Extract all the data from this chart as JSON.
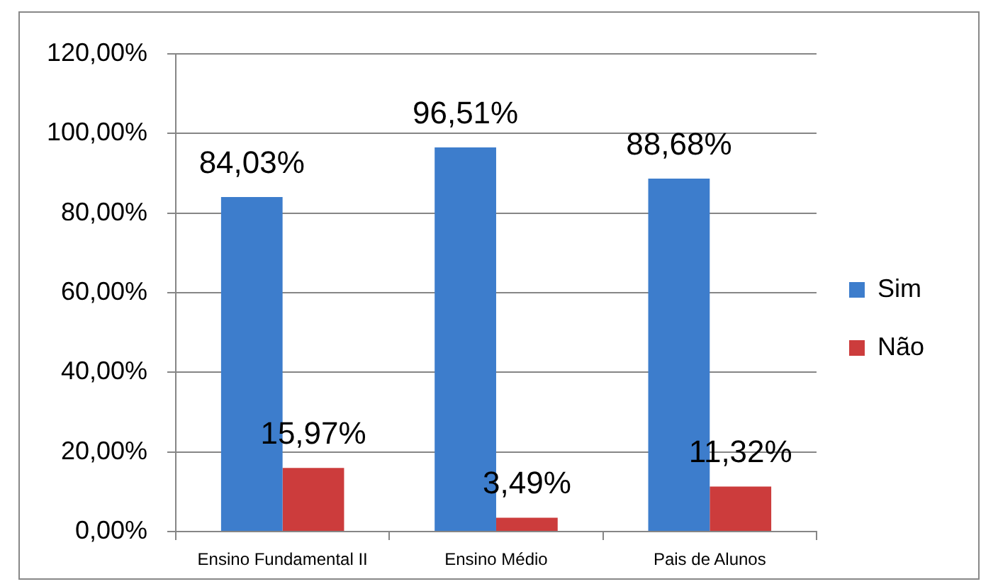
{
  "chart_data": {
    "type": "bar",
    "categories": [
      "Ensino Fundamental II",
      "Ensino Médio",
      "Pais de Alunos"
    ],
    "series": [
      {
        "name": "Sim",
        "color": "#3d7dcc",
        "values": [
          84.03,
          96.51,
          88.68
        ],
        "value_labels": [
          "84,03%",
          "96,51%",
          "88,68%"
        ]
      },
      {
        "name": "Não",
        "color": "#cc3c3c",
        "values": [
          15.97,
          3.49,
          11.32
        ],
        "value_labels": [
          "15,97%",
          "3,49%",
          "11,32%"
        ]
      }
    ],
    "ylim": [
      0,
      120
    ],
    "yticks": [
      {
        "value": 0,
        "label": "0,00%"
      },
      {
        "value": 20,
        "label": "20,00%"
      },
      {
        "value": 40,
        "label": "40,00%"
      },
      {
        "value": 60,
        "label": "60,00%"
      },
      {
        "value": 80,
        "label": "80,00%"
      },
      {
        "value": 100,
        "label": "100,00%"
      },
      {
        "value": 120,
        "label": "120,00%"
      }
    ],
    "grid": "y",
    "legend": "right"
  }
}
